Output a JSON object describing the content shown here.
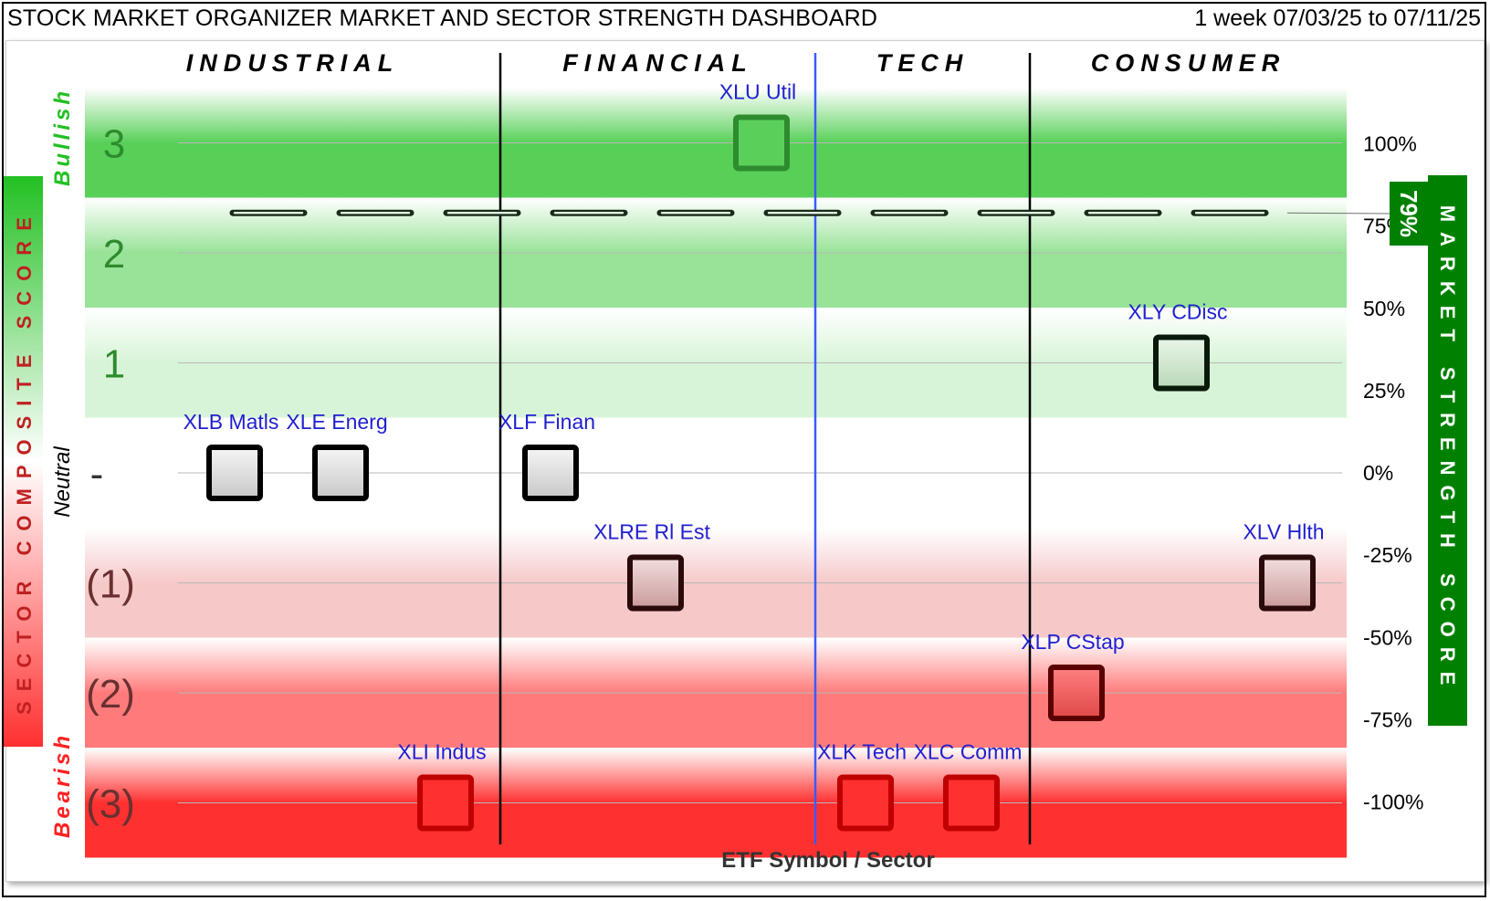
{
  "header": {
    "title": "STOCK MARKET ORGANIZER MARKET AND SECTOR STRENGTH DASHBOARD",
    "period": "1 week 07/03/25 to 07/11/25"
  },
  "chart_data": {
    "type": "scatter",
    "xlabel": "ETF Symbol / Sector",
    "left_axis_title": "SECTOR COMPOSITE SCORE",
    "right_axis_title": "MARKET STRENGTH SCORE",
    "bullish_label": "Bullish",
    "bearish_label": "Bearish",
    "neutral_label": "Neutral",
    "sectors": [
      "INDUSTRIAL",
      "FINANCIAL",
      "TECH",
      "CONSUMER"
    ],
    "left_ticks": [
      {
        "score": 3,
        "label": "3"
      },
      {
        "score": 2,
        "label": "2"
      },
      {
        "score": 1,
        "label": "1"
      },
      {
        "score": 0,
        "label": "-"
      },
      {
        "score": -1,
        "label": "(1)"
      },
      {
        "score": -2,
        "label": "(2)"
      },
      {
        "score": -3,
        "label": "(3)"
      }
    ],
    "right_ticks": [
      {
        "pct": 100,
        "label": "100%"
      },
      {
        "pct": 75,
        "label": "75%"
      },
      {
        "pct": 50,
        "label": "50%"
      },
      {
        "pct": 25,
        "label": "25%"
      },
      {
        "pct": 0,
        "label": "0%"
      },
      {
        "pct": -25,
        "label": "-25%"
      },
      {
        "pct": -50,
        "label": "-50%"
      },
      {
        "pct": -75,
        "label": "-75%"
      },
      {
        "pct": -100,
        "label": "-100%"
      }
    ],
    "market_strength": {
      "value": 79,
      "label": "79%"
    },
    "points": [
      {
        "label": "XLB Matls",
        "sector": "INDUSTRIAL",
        "score": 0
      },
      {
        "label": "XLE Energ",
        "sector": "INDUSTRIAL",
        "score": 0
      },
      {
        "label": "XLI Indus",
        "sector": "INDUSTRIAL",
        "score": -3
      },
      {
        "label": "XLF Finan",
        "sector": "FINANCIAL",
        "score": 0
      },
      {
        "label": "XLRE Rl Est",
        "sector": "FINANCIAL",
        "score": -1
      },
      {
        "label": "XLU Util",
        "sector": "FINANCIAL",
        "score": 3
      },
      {
        "label": "XLK Tech",
        "sector": "TECH",
        "score": -3
      },
      {
        "label": "XLC Comm",
        "sector": "TECH",
        "score": -3
      },
      {
        "label": "XLP CStap",
        "sector": "CONSUMER",
        "score": -2
      },
      {
        "label": "XLY CDisc",
        "sector": "CONSUMER",
        "score": 1
      },
      {
        "label": "XLV Hlth",
        "sector": "CONSUMER",
        "score": -1
      }
    ],
    "colors": {
      "bull_strong": "#58d058",
      "bull_mid": "#98e398",
      "bull_light": "#d8f4d8",
      "bear_light": "#f6c9c9",
      "bear_mid": "#ff7b7b",
      "bear_strong": "#ff3030",
      "label_blue": "#1f1fd0",
      "title_green": "#008000"
    }
  }
}
